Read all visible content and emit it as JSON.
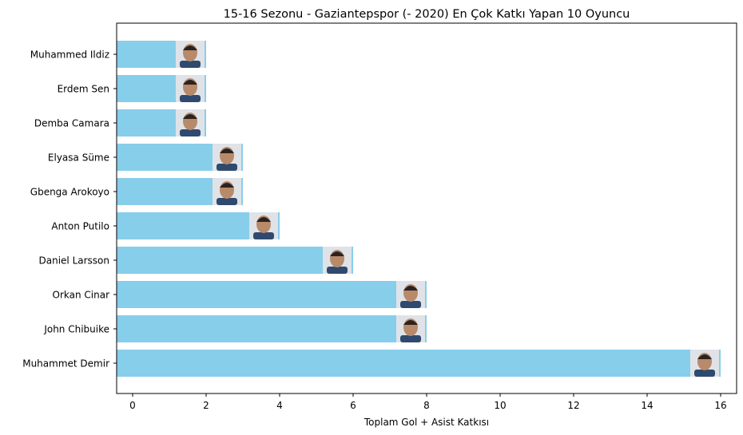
{
  "chart_data": {
    "type": "bar",
    "orientation": "horizontal",
    "title": "15-16 Sezonu - Gaziantepspor (- 2020) En Çok Katkı Yapan 10 Oyuncu",
    "xlabel": "Toplam Gol + Asist Katkısı",
    "ylabel": "",
    "xlim": [
      0,
      16.8
    ],
    "xticks": [
      0,
      2,
      4,
      6,
      8,
      10,
      12,
      14,
      16
    ],
    "categories": [
      "Muhammed Ildiz",
      "Erdem Sen",
      "Demba Camara",
      "Elyasa Süme",
      "Gbenga Arokoyo",
      "Anton Putilo",
      "Daniel Larsson",
      "Orkan Cinar",
      "John Chibuike",
      "Muhammet Demir"
    ],
    "values": [
      2,
      2,
      2,
      3,
      3,
      4,
      6,
      8,
      8,
      16
    ],
    "bar_color": "#87ceeb",
    "grid": false,
    "legend": "none",
    "bar_icon": "player-photo"
  }
}
